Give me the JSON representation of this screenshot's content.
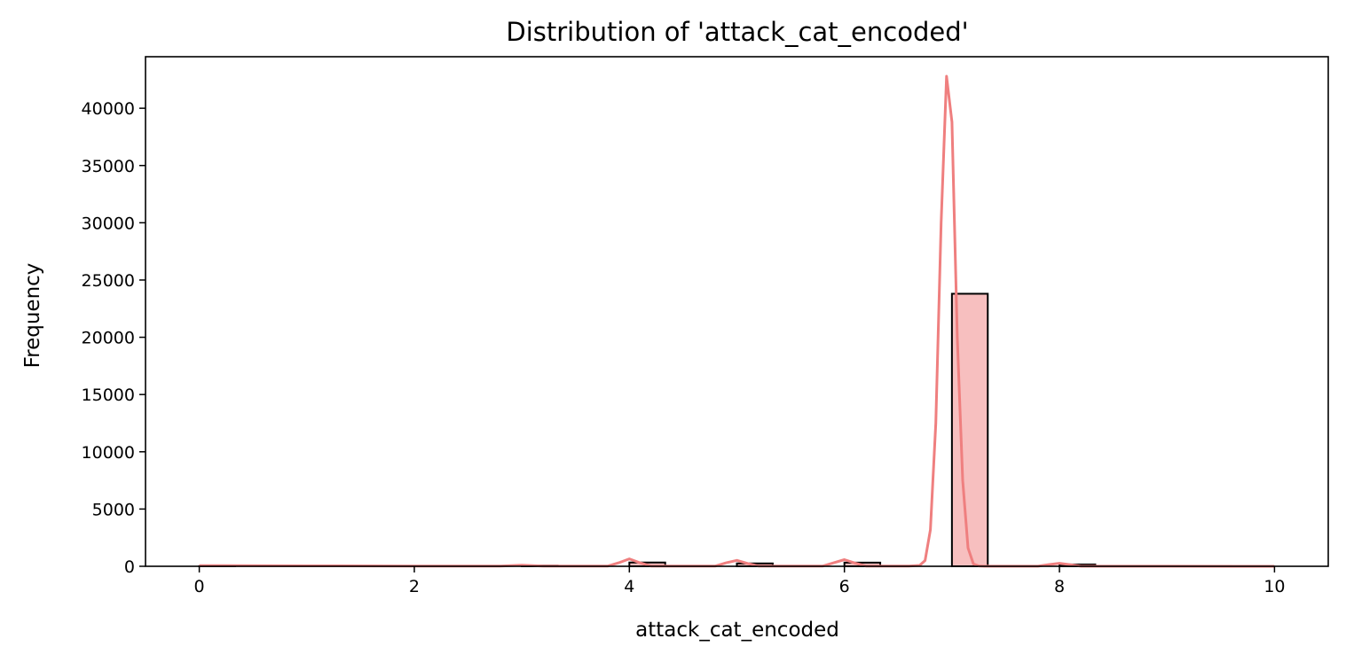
{
  "chart_data": {
    "type": "bar",
    "title": "Distribution of 'attack_cat_encoded'",
    "xlabel": "attack_cat_encoded",
    "ylabel": "Frequency",
    "xlim": [
      -0.5,
      10.5
    ],
    "ylim": [
      0,
      44500
    ],
    "xticks": [
      0,
      2,
      4,
      6,
      8,
      10
    ],
    "yticks": [
      0,
      5000,
      10000,
      15000,
      20000,
      25000,
      30000,
      35000,
      40000
    ],
    "bin_width": 0.3333,
    "bins": [
      {
        "x0": 0.0,
        "count": 10
      },
      {
        "x0": 1.0,
        "count": 10
      },
      {
        "x0": 2.0,
        "count": 5
      },
      {
        "x0": 3.0,
        "count": 60
      },
      {
        "x0": 4.0,
        "count": 330
      },
      {
        "x0": 5.0,
        "count": 250
      },
      {
        "x0": 6.0,
        "count": 320
      },
      {
        "x0": 7.0,
        "count": 23800
      },
      {
        "x0": 8.0,
        "count": 160
      },
      {
        "x0": 9.0,
        "count": 15
      }
    ],
    "kde": {
      "x": [
        0.0,
        1.0,
        2.0,
        2.8,
        3.0,
        3.2,
        3.8,
        3.9,
        4.0,
        4.1,
        4.2,
        4.8,
        4.9,
        5.0,
        5.1,
        5.2,
        5.8,
        5.9,
        6.0,
        6.1,
        6.2,
        6.6,
        6.7,
        6.75,
        6.8,
        6.85,
        6.9,
        6.95,
        7.0,
        7.05,
        7.1,
        7.15,
        7.2,
        7.25,
        7.3,
        7.4,
        7.8,
        7.9,
        8.0,
        8.1,
        8.2,
        9.0,
        10.0
      ],
      "y": [
        60,
        40,
        20,
        20,
        90,
        20,
        20,
        300,
        650,
        300,
        20,
        20,
        300,
        520,
        250,
        20,
        20,
        300,
        580,
        280,
        20,
        20,
        80,
        500,
        3200,
        12500,
        30000,
        42800,
        38800,
        20000,
        7500,
        1600,
        200,
        30,
        10,
        5,
        5,
        150,
        260,
        140,
        10,
        10,
        0
      ]
    },
    "colors": {
      "bar_fill": "#f7bfbf",
      "bar_edge": "#000000",
      "kde_line": "#ef7f7f"
    },
    "grid": false,
    "legend": "none"
  }
}
